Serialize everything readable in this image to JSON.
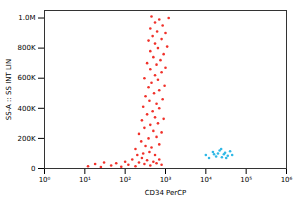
{
  "chart_data": {
    "type": "scatter",
    "xlabel": "CD34 PerCP",
    "ylabel": "SS-A :: SS INT LIN",
    "log": "x",
    "xlim": [
      1,
      1000000
    ],
    "xticks": [
      {
        "value": 1,
        "label": "10⁰"
      },
      {
        "value": 10,
        "label": "10¹"
      },
      {
        "value": 100,
        "label": "10²"
      },
      {
        "value": 1000,
        "label": "10³"
      },
      {
        "value": 10000,
        "label": "10⁴"
      },
      {
        "value": 100000,
        "label": "10⁵"
      },
      {
        "value": 1000000,
        "label": "10⁶"
      }
    ],
    "ylim": [
      0,
      1050000
    ],
    "yticks": [
      0,
      {
        "value": 200000,
        "label": "200K"
      },
      {
        "value": 400000,
        "label": "400K"
      },
      {
        "value": 600000,
        "label": "600K"
      },
      {
        "value": 800000,
        "label": "800K"
      },
      {
        "value": 1000000,
        "label": "1.0M"
      }
    ],
    "grid": false,
    "series": [
      {
        "color": "#f0312a",
        "x": [
          12,
          18,
          25,
          30,
          45,
          60,
          80,
          100,
          120,
          150,
          180,
          220,
          260,
          300,
          350,
          420,
          500,
          600,
          700,
          800,
          200,
          280,
          400,
          550,
          180,
          320,
          450,
          700,
          250,
          380,
          600,
          220,
          500,
          800,
          300,
          420,
          650,
          260,
          550,
          900,
          350,
          480,
          700,
          280,
          600,
          400,
          850,
          320,
          520,
          700,
          380,
          950,
          450,
          650,
          300,
          550,
          800,
          420,
          1000,
          600,
          350,
          750,
          500,
          900,
          420,
          650,
          1100,
          550,
          380,
          800,
          480,
          1000,
          620,
          420,
          850,
          550,
          700,
          1200,
          450
        ],
        "values": [
          15000,
          30000,
          10000,
          40000,
          20000,
          35000,
          12000,
          45000,
          25000,
          60000,
          15000,
          40000,
          70000,
          30000,
          55000,
          20000,
          45000,
          35000,
          60000,
          25000,
          90000,
          100000,
          110000,
          90000,
          130000,
          150000,
          140000,
          160000,
          180000,
          200000,
          210000,
          230000,
          250000,
          240000,
          270000,
          290000,
          300000,
          320000,
          340000,
          330000,
          360000,
          380000,
          400000,
          410000,
          430000,
          450000,
          460000,
          480000,
          500000,
          520000,
          540000,
          550000,
          570000,
          590000,
          600000,
          620000,
          640000,
          660000,
          670000,
          690000,
          700000,
          720000,
          740000,
          760000,
          780000,
          800000,
          810000,
          830000,
          850000,
          860000,
          880000,
          900000,
          910000,
          930000,
          950000,
          970000,
          990000,
          1000000,
          1010000
        ]
      },
      {
        "color": "#2fb8e6",
        "x": [
          10000,
          12000,
          15000,
          18000,
          20000,
          22000,
          25000,
          28000,
          30000,
          35000,
          40000,
          16000,
          24000,
          32000,
          45000
        ],
        "values": [
          90000,
          70000,
          110000,
          80000,
          100000,
          120000,
          75000,
          95000,
          105000,
          85000,
          115000,
          95000,
          130000,
          70000,
          90000
        ]
      }
    ]
  }
}
